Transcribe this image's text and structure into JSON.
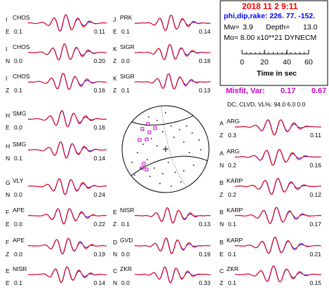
{
  "event": {
    "date_time": "2018 11  2    9:11",
    "mechanism": "phi,dip,rake: 226. 77. -152.",
    "mw_label": "Mw=",
    "mw_value": "3.9",
    "depth_label": "Depth=",
    "depth_value": "13.0",
    "mo_text": "Mo=  8.00 x10**21 DYNECM",
    "time_ticks": [
      "0",
      "20",
      "40",
      "60"
    ],
    "time_axis_label": "Time  in sec",
    "misfit_label": "Misfit, Var:",
    "misfit_value": "0.17",
    "var_value": "0.67",
    "dc_line": "DC, CLVD, VL%:  94.0   6.0   0.0"
  },
  "colors": {
    "observed": "#ff0000",
    "synthetic": "#0000ff",
    "title": "#ff0000",
    "mechanism": "#0000ff",
    "misfit": "#cc00cc",
    "box_border": "#000000"
  },
  "traces": [
    {
      "letter": "I",
      "station": "CHOS",
      "comp": "E",
      "left_value": "0.1",
      "right_value": "0.11",
      "seed": 1
    },
    {
      "letter": "I",
      "station": "CHOS",
      "comp": "N",
      "left_value": "0.0",
      "right_value": "0.20",
      "seed": 2
    },
    {
      "letter": "I",
      "station": "CHOS",
      "comp": "Z",
      "left_value": "0.1",
      "right_value": "0.16",
      "seed": 3
    },
    {
      "letter": "H",
      "station": "SMG",
      "comp": "E",
      "left_value": "0.0",
      "right_value": "0.16",
      "seed": 4
    },
    {
      "letter": "H",
      "station": "SMG",
      "comp": "N",
      "left_value": "0.1",
      "right_value": "0.14",
      "seed": 5
    },
    {
      "letter": "G",
      "station": "VLY",
      "comp": "N",
      "left_value": "0.0",
      "right_value": "0.24",
      "seed": 6
    },
    {
      "letter": "F",
      "station": "APE",
      "comp": "E",
      "left_value": "0.0",
      "right_value": "0.22",
      "seed": 7
    },
    {
      "letter": "F",
      "station": "APE",
      "comp": "Z",
      "left_value": "0.0",
      "right_value": "0.19",
      "seed": 8
    },
    {
      "letter": "E",
      "station": "NISR",
      "comp": "E",
      "left_value": "0.1",
      "right_value": "0.14",
      "seed": 9
    },
    {
      "letter": "J",
      "station": "PRK",
      "comp": "E",
      "left_value": "0.1",
      "right_value": "0.14",
      "seed": 10
    },
    {
      "letter": "K",
      "station": "SIGR",
      "comp": "Z",
      "left_value": "0.0",
      "right_value": "0.18",
      "seed": 11
    },
    {
      "letter": "K",
      "station": "SIGR",
      "comp": "Z",
      "left_value": "0.1",
      "right_value": "0.13",
      "seed": 12
    },
    {
      "letter": "E",
      "station": "NISR",
      "comp": "Z",
      "left_value": "0.1",
      "right_value": "0.13",
      "seed": 13
    },
    {
      "letter": "D",
      "station": "GVD",
      "comp": "N",
      "left_value": "0.0",
      "right_value": "0.19",
      "seed": 14
    },
    {
      "letter": "C",
      "station": "ZKR",
      "comp": "N",
      "left_value": "0.0",
      "right_value": "0.33",
      "seed": 15
    },
    {
      "letter": "A",
      "station": "ARG",
      "comp": "Z",
      "left_value": "0.3",
      "right_value": "0.11",
      "seed": 16
    },
    {
      "letter": "A",
      "station": "ARG",
      "comp": "N",
      "left_value": "0.2",
      "right_value": "0.16",
      "seed": 17
    },
    {
      "letter": "B",
      "station": "KARP",
      "comp": "Z",
      "left_value": "0.2",
      "right_value": "0.12",
      "seed": 18
    },
    {
      "letter": "B",
      "station": "KARP",
      "comp": "N",
      "left_value": "0.1",
      "right_value": "0.17",
      "seed": 19
    },
    {
      "letter": "B",
      "station": "KARP",
      "comp": "E",
      "left_value": "0.1",
      "right_value": "0.21",
      "seed": 20
    },
    {
      "letter": "C",
      "station": "ZKR",
      "comp": "Z",
      "left_value": "0.1",
      "right_value": "0.15",
      "seed": 21
    }
  ]
}
